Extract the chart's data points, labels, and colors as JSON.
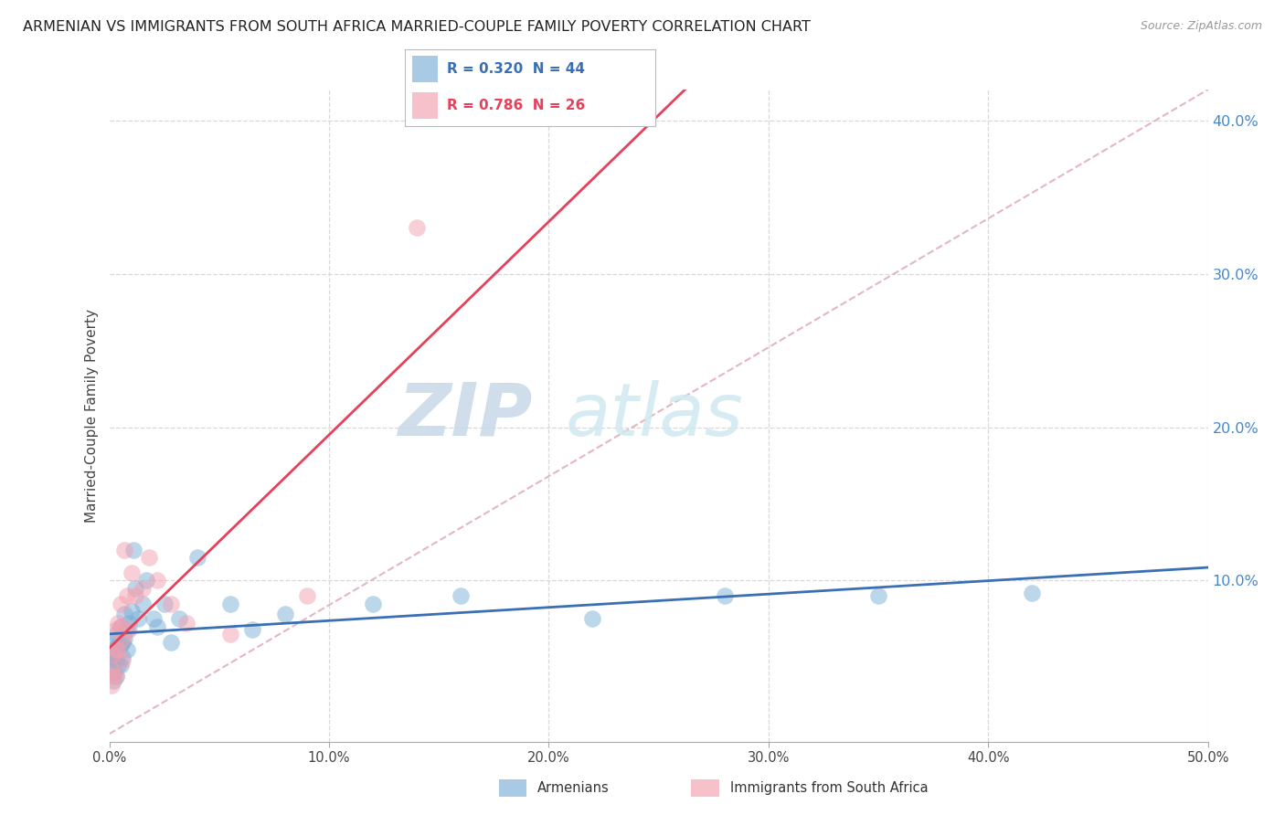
{
  "title": "ARMENIAN VS IMMIGRANTS FROM SOUTH AFRICA MARRIED-COUPLE FAMILY POVERTY CORRELATION CHART",
  "source": "Source: ZipAtlas.com",
  "ylabel": "Married-Couple Family Poverty",
  "xlim": [
    0.0,
    0.5
  ],
  "ylim": [
    -0.005,
    0.42
  ],
  "xticks": [
    0.0,
    0.1,
    0.2,
    0.3,
    0.4,
    0.5
  ],
  "yticks": [
    0.1,
    0.2,
    0.3,
    0.4
  ],
  "xtick_labels": [
    "0.0%",
    "10.0%",
    "20.0%",
    "30.0%",
    "40.0%",
    "50.0%"
  ],
  "ytick_labels": [
    "10.0%",
    "20.0%",
    "30.0%",
    "40.0%"
  ],
  "watermark_zip": "ZIP",
  "watermark_atlas": "atlas",
  "legend_r1": "R = 0.320",
  "legend_n1": "N = 44",
  "legend_r2": "R = 0.786",
  "legend_n2": "N = 26",
  "armenian_color": "#7aaed6",
  "sa_color": "#f4a0b0",
  "line1_color": "#3b6fb5",
  "line2_color": "#e8405a",
  "ref_line_color": "#e0b0bb",
  "armenian_x": [
    0.001,
    0.001,
    0.001,
    0.002,
    0.002,
    0.002,
    0.002,
    0.003,
    0.003,
    0.003,
    0.003,
    0.004,
    0.004,
    0.005,
    0.005,
    0.005,
    0.006,
    0.006,
    0.007,
    0.007,
    0.008,
    0.008,
    0.009,
    0.01,
    0.011,
    0.012,
    0.013,
    0.015,
    0.017,
    0.02,
    0.022,
    0.025,
    0.028,
    0.032,
    0.04,
    0.055,
    0.065,
    0.08,
    0.12,
    0.16,
    0.22,
    0.28,
    0.35,
    0.42
  ],
  "armenian_y": [
    0.055,
    0.05,
    0.045,
    0.06,
    0.05,
    0.04,
    0.035,
    0.065,
    0.055,
    0.048,
    0.038,
    0.058,
    0.045,
    0.07,
    0.058,
    0.045,
    0.06,
    0.05,
    0.078,
    0.062,
    0.068,
    0.055,
    0.072,
    0.08,
    0.12,
    0.095,
    0.075,
    0.085,
    0.1,
    0.075,
    0.07,
    0.085,
    0.06,
    0.075,
    0.115,
    0.085,
    0.068,
    0.078,
    0.085,
    0.09,
    0.075,
    0.09,
    0.09,
    0.092
  ],
  "sa_x": [
    0.001,
    0.001,
    0.002,
    0.002,
    0.003,
    0.003,
    0.003,
    0.004,
    0.004,
    0.005,
    0.005,
    0.006,
    0.006,
    0.007,
    0.008,
    0.009,
    0.01,
    0.012,
    0.015,
    0.018,
    0.022,
    0.028,
    0.035,
    0.055,
    0.09,
    0.14
  ],
  "sa_y": [
    0.042,
    0.032,
    0.052,
    0.038,
    0.068,
    0.055,
    0.038,
    0.072,
    0.055,
    0.085,
    0.07,
    0.062,
    0.048,
    0.12,
    0.09,
    0.068,
    0.105,
    0.09,
    0.095,
    0.115,
    0.1,
    0.085,
    0.072,
    0.065,
    0.09,
    0.33
  ],
  "background_color": "#ffffff",
  "plot_bg_color": "#ffffff",
  "grid_color": "#d8d8d8"
}
